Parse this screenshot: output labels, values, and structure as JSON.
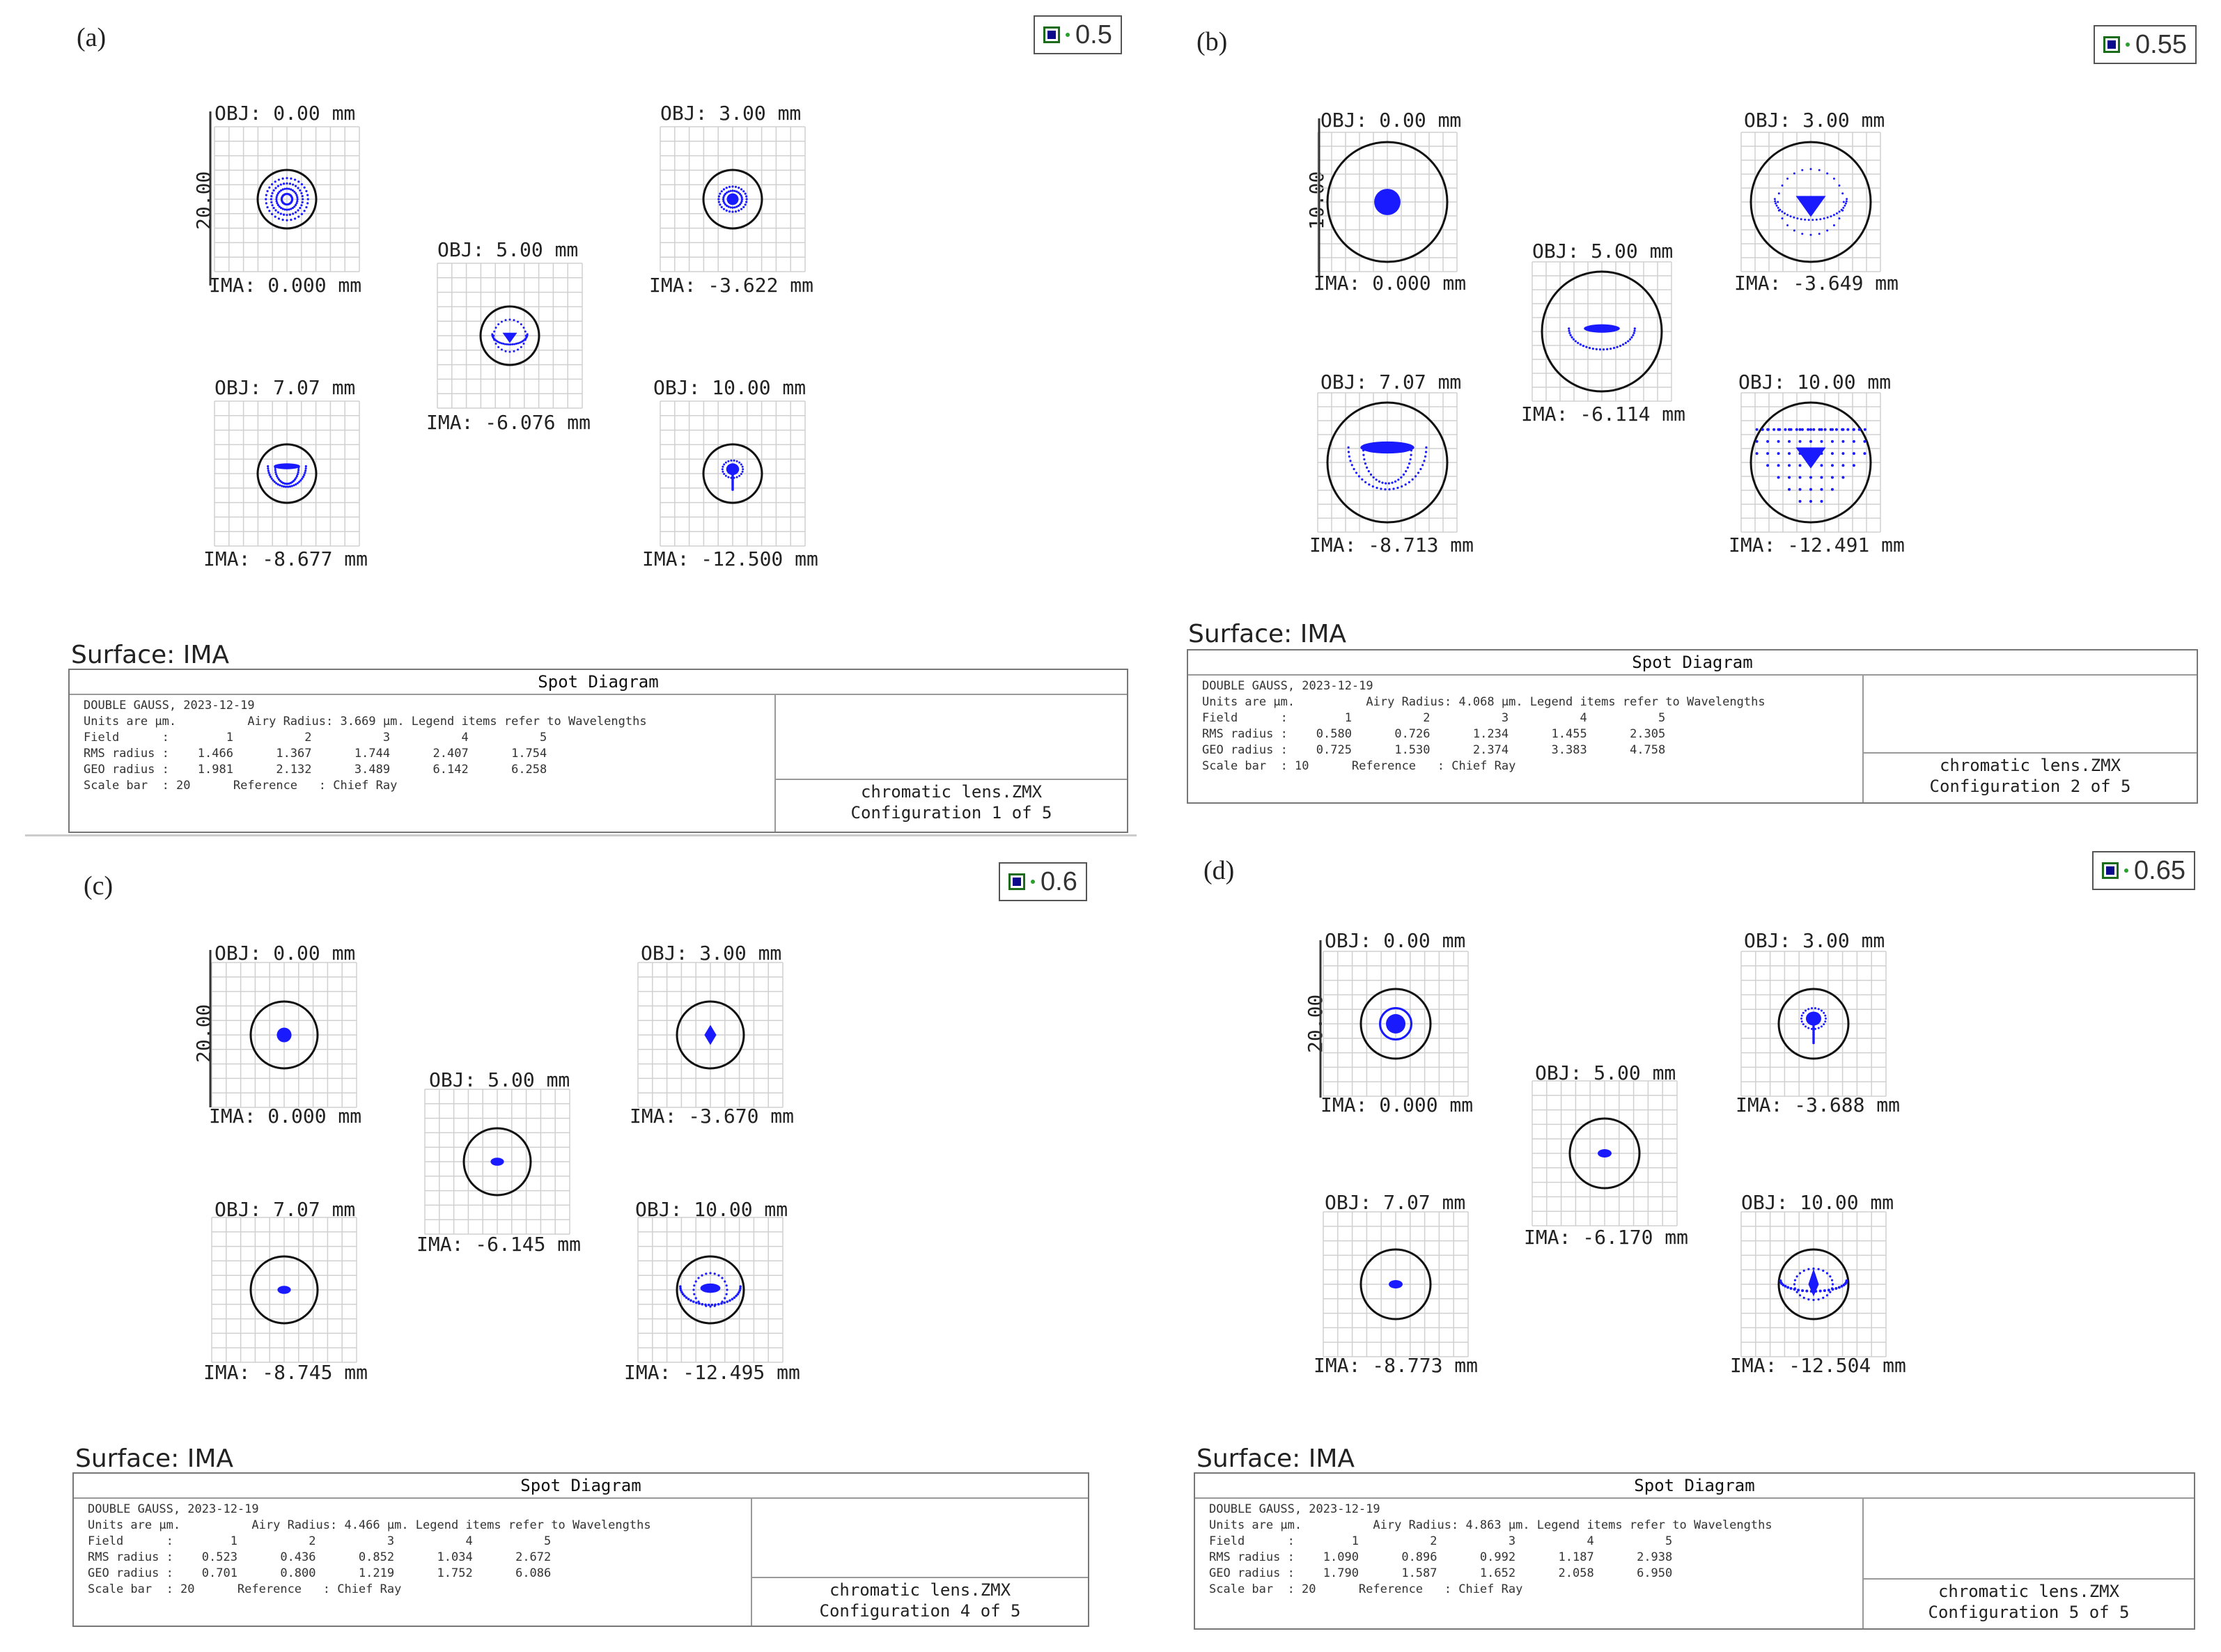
{
  "panels": [
    {
      "label": "(a)",
      "wavelength": "0.5",
      "surface": "Surface: IMA",
      "spots": {
        "tl": {
          "obj": "OBJ: 0.00 mm",
          "ima": "IMA: 0.000 mm",
          "scale": "20.00"
        },
        "tr": {
          "obj": "OBJ: 3.00 mm",
          "ima": "IMA: -3.622 mm"
        },
        "mid": {
          "obj": "OBJ: 5.00 mm",
          "ima": "IMA: -6.076 mm"
        },
        "bl": {
          "obj": "OBJ: 7.07 mm",
          "ima": "IMA: -8.677 mm"
        },
        "br": {
          "obj": "OBJ: 10.00 mm",
          "ima": "IMA: -12.500 mm"
        }
      },
      "box": {
        "title": "Spot Diagram",
        "info": "DOUBLE GAUSS, 2023-12-19\nUnits are µm.          Airy Radius: 3.669 µm. Legend items refer to Wavelengths\nField      :        1          2          3          4          5\nRMS radius :    1.466      1.367      1.744      2.407      1.754\nGEO radius :    1.981      2.132      3.489      6.142      6.258\nScale bar  : 20      Reference   : Chief Ray",
        "cfg1": "chromatic lens.ZMX",
        "cfg2": "Configuration 1 of 5"
      }
    },
    {
      "label": "(b)",
      "wavelength": "0.55",
      "surface": "Surface: IMA",
      "spots": {
        "tl": {
          "obj": "OBJ: 0.00 mm",
          "ima": "IMA: 0.000 mm",
          "scale": "10.00"
        },
        "tr": {
          "obj": "OBJ: 3.00 mm",
          "ima": "IMA: -3.649 mm"
        },
        "mid": {
          "obj": "OBJ: 5.00 mm",
          "ima": "IMA: -6.114 mm"
        },
        "bl": {
          "obj": "OBJ: 7.07 mm",
          "ima": "IMA: -8.713 mm"
        },
        "br": {
          "obj": "OBJ: 10.00 mm",
          "ima": "IMA: -12.491 mm"
        }
      },
      "box": {
        "title": "Spot Diagram",
        "info": "DOUBLE GAUSS, 2023-12-19\nUnits are µm.          Airy Radius: 4.068 µm. Legend items refer to Wavelengths\nField      :        1          2          3          4          5\nRMS radius :    0.580      0.726      1.234      1.455      2.305\nGEO radius :    0.725      1.530      2.374      3.383      4.758\nScale bar  : 10      Reference   : Chief Ray",
        "cfg1": "chromatic lens.ZMX",
        "cfg2": "Configuration 2 of 5"
      }
    },
    {
      "label": "(c)",
      "wavelength": "0.6",
      "surface": "Surface: IMA",
      "spots": {
        "tl": {
          "obj": "OBJ: 0.00 mm",
          "ima": "IMA: 0.000 mm",
          "scale": "20.00"
        },
        "tr": {
          "obj": "OBJ: 3.00 mm",
          "ima": "IMA: -3.670 mm"
        },
        "mid": {
          "obj": "OBJ: 5.00 mm",
          "ima": "IMA: -6.145 mm"
        },
        "bl": {
          "obj": "OBJ: 7.07 mm",
          "ima": "IMA: -8.745 mm"
        },
        "br": {
          "obj": "OBJ: 10.00 mm",
          "ima": "IMA: -12.495 mm"
        }
      },
      "box": {
        "title": "Spot Diagram",
        "info": "DOUBLE GAUSS, 2023-12-19\nUnits are µm.          Airy Radius: 4.466 µm. Legend items refer to Wavelengths\nField      :        1          2          3          4          5\nRMS radius :    0.523      0.436      0.852      1.034      2.672\nGEO radius :    0.701      0.800      1.219      1.752      6.086\nScale bar  : 20      Reference   : Chief Ray",
        "cfg1": "chromatic lens.ZMX",
        "cfg2": "Configuration 4 of 5"
      }
    },
    {
      "label": "(d)",
      "wavelength": "0.65",
      "surface": "Surface: IMA",
      "spots": {
        "tl": {
          "obj": "OBJ: 0.00 mm",
          "ima": "IMA: 0.000 mm",
          "scale": "20.00"
        },
        "tr": {
          "obj": "OBJ: 3.00 mm",
          "ima": "IMA: -3.688 mm"
        },
        "mid": {
          "obj": "OBJ: 5.00 mm",
          "ima": "IMA: -6.170 mm"
        },
        "bl": {
          "obj": "OBJ: 7.07 mm",
          "ima": "IMA: -8.773 mm"
        },
        "br": {
          "obj": "OBJ: 10.00 mm",
          "ima": "IMA: -12.504 mm"
        }
      },
      "box": {
        "title": "Spot Diagram",
        "info": "DOUBLE GAUSS, 2023-12-19\nUnits are µm.          Airy Radius: 4.863 µm. Legend items refer to Wavelengths\nField      :        1          2          3          4          5\nRMS radius :    1.090      0.896      0.992      1.187      2.938\nGEO radius :    1.790      1.587      1.652      2.058      6.950\nScale bar  : 20      Reference   : Chief Ray",
        "cfg1": "chromatic lens.ZMX",
        "cfg2": "Configuration 5 of 5"
      }
    }
  ],
  "colors": {
    "spot": "#1a1aff",
    "grid": "#d0d0d0",
    "circle": "#111111"
  }
}
